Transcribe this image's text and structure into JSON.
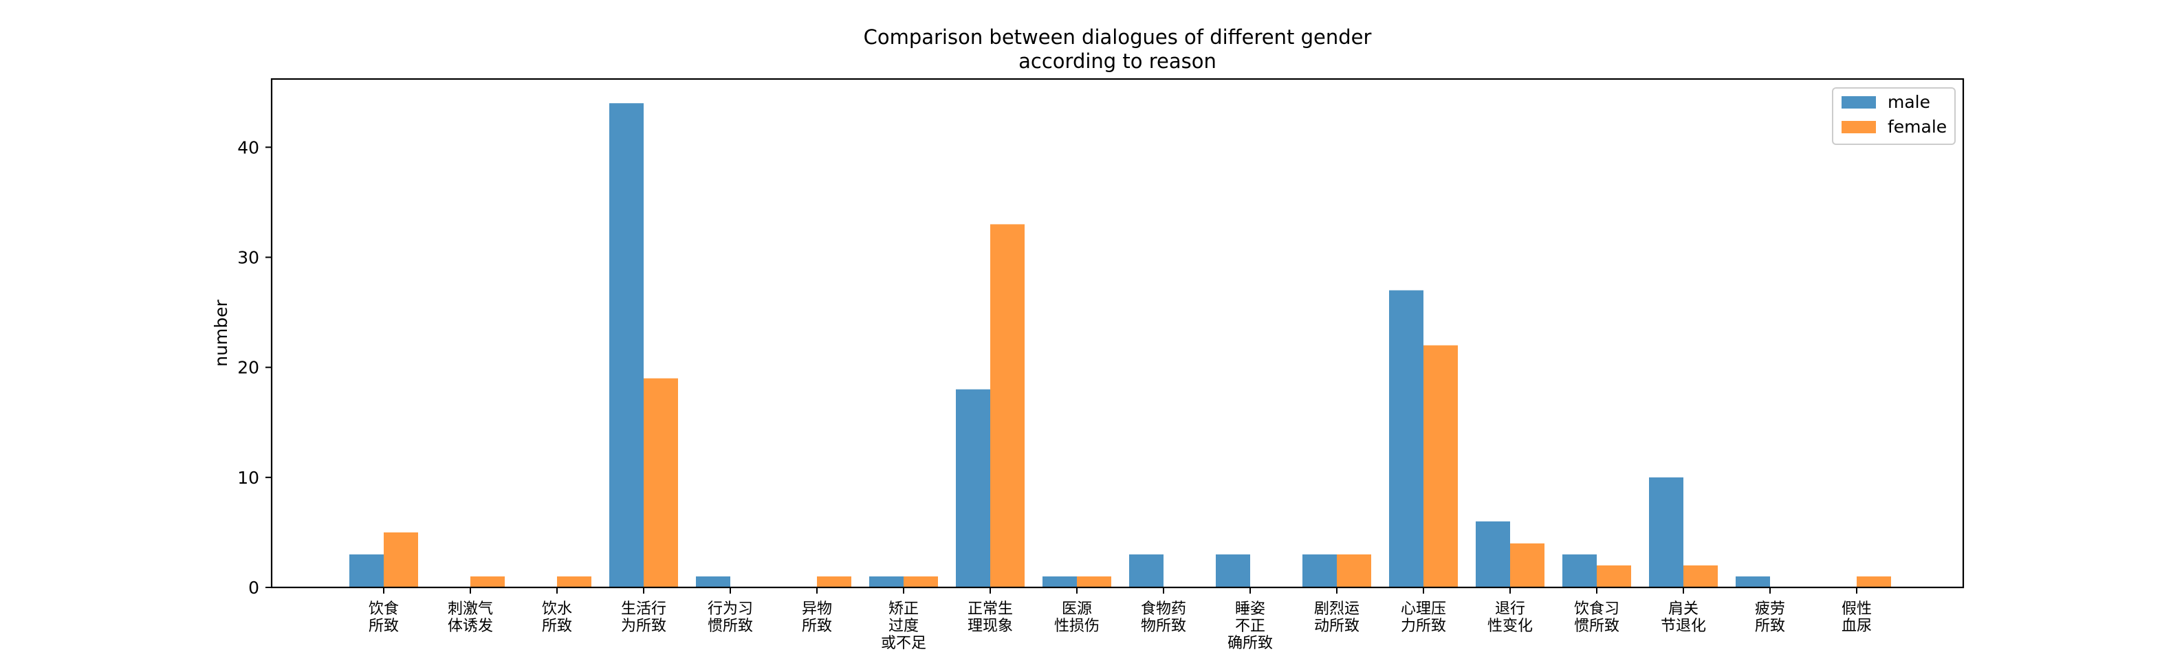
{
  "chart_data": {
    "type": "bar",
    "title": [
      "Comparison between dialogues of different gender",
      "according to reason"
    ],
    "xlabel": "",
    "ylabel": "number",
    "ylim": [
      0,
      46.2
    ],
    "yticks": [
      0,
      10,
      20,
      30,
      40
    ],
    "grid": false,
    "legend_position": "top-right",
    "categories": [
      [
        "饮食",
        "所致"
      ],
      [
        "刺激气",
        "体诱发"
      ],
      [
        "饮水",
        "所致"
      ],
      [
        "生活行",
        "为所致"
      ],
      [
        "行为习",
        "惯所致"
      ],
      [
        "异物",
        "所致"
      ],
      [
        "矫正",
        "过度",
        "或不足"
      ],
      [
        "正常生",
        "理现象"
      ],
      [
        "医源",
        "性损伤"
      ],
      [
        "食物药",
        "物所致"
      ],
      [
        "睡姿",
        "不正",
        "确所致"
      ],
      [
        "剧烈运",
        "动所致"
      ],
      [
        "心理压",
        "力所致"
      ],
      [
        "退行",
        "性变化"
      ],
      [
        "饮食习",
        "惯所致"
      ],
      [
        "肩关",
        "节退化"
      ],
      [
        "疲劳",
        "所致"
      ],
      [
        "假性",
        "血尿"
      ]
    ],
    "series": [
      {
        "name": "male",
        "color": "#4c92c3",
        "values": [
          3,
          0,
          0,
          44,
          1,
          0,
          1,
          18,
          1,
          3,
          3,
          3,
          27,
          6,
          3,
          10,
          1,
          0
        ]
      },
      {
        "name": "female",
        "color": "#ff993e",
        "values": [
          5,
          1,
          1,
          19,
          0,
          1,
          1,
          33,
          1,
          0,
          0,
          3,
          22,
          4,
          2,
          2,
          0,
          1
        ]
      }
    ]
  }
}
